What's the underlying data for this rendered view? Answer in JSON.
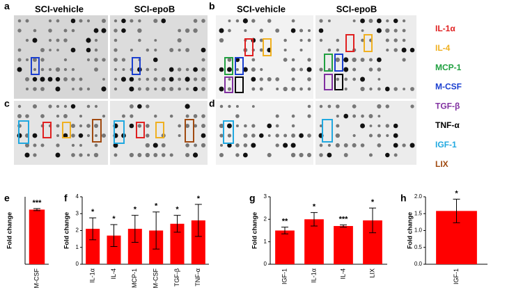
{
  "panels": {
    "a": "a",
    "b": "b",
    "c": "c",
    "d": "d",
    "e": "e",
    "f": "f",
    "g": "g",
    "h": "h"
  },
  "blot_headers": {
    "a_left": "SCI-vehicle",
    "a_right": "SCI-epoB",
    "b_left": "SCI-vehicle",
    "b_right": "SCI-epoB"
  },
  "legend": [
    {
      "name": "IL-1α",
      "color": "#e02020"
    },
    {
      "name": "IL-4",
      "color": "#f0b020"
    },
    {
      "name": "MCP-1",
      "color": "#20a040"
    },
    {
      "name": "M-CSF",
      "color": "#1a3fd0"
    },
    {
      "name": "TGF-β",
      "color": "#8030a0"
    },
    {
      "name": "TNF-α",
      "color": "#000000"
    },
    {
      "name": "IGF-1",
      "color": "#20a8e0"
    },
    {
      "name": "LIX",
      "color": "#a04a10"
    }
  ],
  "chart_data": [
    {
      "type": "bar",
      "y_label": "Fold change",
      "color": "#ff0000",
      "categories": [
        "M-CSF"
      ],
      "values": [
        1.62
      ],
      "errors": [
        0.03
      ],
      "annotations": [
        "***"
      ],
      "ylim": [
        0,
        2
      ]
    },
    {
      "type": "bar",
      "y_label": "Fold change",
      "color": "#ff0000",
      "categories": [
        "IL-1α",
        "IL-4",
        "MCP-1",
        "M-CSF",
        "TGF-β",
        "TNF-α"
      ],
      "values": [
        2.1,
        1.7,
        2.1,
        2.0,
        2.4,
        2.6
      ],
      "errors": [
        0.65,
        0.65,
        0.8,
        1.1,
        0.5,
        0.95
      ],
      "annotations": [
        "*",
        "*",
        "*",
        "*",
        "*",
        "*"
      ],
      "ylim": [
        0,
        4
      ],
      "yticks": [
        0,
        1,
        2,
        3,
        4
      ]
    },
    {
      "type": "bar",
      "y_label": "Fold change",
      "color": "#ff0000",
      "categories": [
        "IGF-1",
        "IL-1α",
        "IL-4",
        "LIX"
      ],
      "values": [
        1.5,
        2.0,
        1.7,
        1.95
      ],
      "errors": [
        0.15,
        0.3,
        0.05,
        0.55
      ],
      "annotations": [
        "**",
        "*",
        "***",
        "*"
      ],
      "ylim": [
        0,
        3
      ],
      "yticks": [
        0,
        1,
        2,
        3
      ]
    },
    {
      "type": "bar",
      "y_label": "Fold change",
      "color": "#ff0000",
      "categories": [
        "IGF-1"
      ],
      "values": [
        1.58
      ],
      "errors": [
        0.35
      ],
      "annotations": [
        "*"
      ],
      "ylim": [
        0,
        2
      ],
      "yticks": [
        {
          "value": 0,
          "label": "0.0"
        },
        {
          "value": 0.5,
          "label": "0.5"
        },
        {
          "value": 1,
          "label": "1.0"
        },
        {
          "value": 1.5,
          "label": "1.5"
        },
        {
          "value": 2,
          "label": "2.0"
        }
      ]
    }
  ]
}
